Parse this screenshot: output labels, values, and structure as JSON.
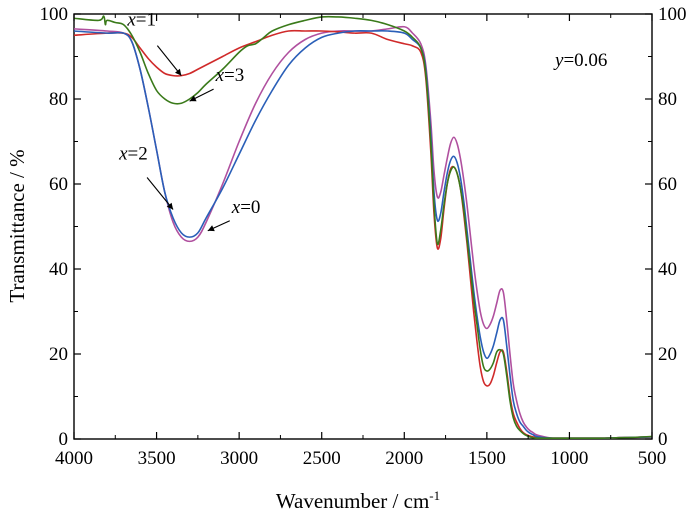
{
  "chart_data": {
    "type": "line",
    "title": "",
    "xlabel_main": "Wavenumber / cm",
    "xlabel_sup": "-1",
    "ylabel": "Transmittance / %",
    "xlim": [
      4000,
      500
    ],
    "x_reversed": true,
    "ylim": [
      0,
      100
    ],
    "x_ticks": [
      4000,
      3500,
      3000,
      2500,
      2000,
      1500,
      1000,
      500
    ],
    "x_tick_labels": [
      "4000",
      "3500",
      "3000",
      "2500",
      "2000",
      "1500",
      "1000",
      "500"
    ],
    "y_ticks": [
      0,
      20,
      40,
      60,
      80,
      100
    ],
    "y_tick_labels": [
      "0",
      "20",
      "40",
      "60",
      "80",
      "100"
    ],
    "right_y_axis_labels": true,
    "grid": false,
    "legend": "none",
    "series": [
      {
        "name": "x=0",
        "color": "#b0509f",
        "x": [
          4000,
          3800,
          3700,
          3650,
          3600,
          3550,
          3500,
          3450,
          3400,
          3350,
          3300,
          3250,
          3200,
          3100,
          3000,
          2900,
          2800,
          2700,
          2600,
          2500,
          2400,
          2300,
          2200,
          2100,
          2000,
          1950,
          1900,
          1870,
          1840,
          1820,
          1800,
          1780,
          1760,
          1740,
          1720,
          1700,
          1680,
          1660,
          1640,
          1620,
          1600,
          1580,
          1560,
          1540,
          1520,
          1500,
          1480,
          1460,
          1440,
          1420,
          1400,
          1380,
          1360,
          1340,
          1320,
          1300,
          1280,
          1260,
          1240,
          1220,
          1200,
          1150,
          1100,
          1050,
          1000,
          900,
          800,
          700,
          600,
          500
        ],
        "y": [
          96.5,
          96.0,
          95.5,
          93.5,
          87,
          78,
          68,
          58,
          51,
          47.5,
          46.5,
          47.5,
          51,
          60,
          70,
          79,
          86,
          91,
          94,
          95.5,
          96,
          96,
          96,
          96.5,
          97,
          95.5,
          93,
          88,
          75,
          63,
          57,
          58,
          62,
          66,
          69.5,
          71,
          69.5,
          66,
          61,
          55,
          48,
          41,
          35,
          30,
          27,
          26,
          27,
          29,
          32,
          35,
          34.5,
          28,
          20,
          13,
          9,
          6,
          4,
          2.8,
          2,
          1.5,
          1.0,
          0.5,
          0.2,
          0.2,
          0.2,
          0.2,
          0.2,
          0.3,
          0.4,
          0.5
        ]
      },
      {
        "name": "x=1",
        "color": "#d02a2a",
        "x": [
          4000,
          3800,
          3700,
          3650,
          3600,
          3550,
          3500,
          3450,
          3400,
          3350,
          3300,
          3250,
          3200,
          3100,
          3000,
          2900,
          2800,
          2700,
          2600,
          2500,
          2400,
          2300,
          2200,
          2100,
          2000,
          1950,
          1900,
          1870,
          1840,
          1820,
          1800,
          1780,
          1760,
          1740,
          1720,
          1700,
          1680,
          1660,
          1640,
          1620,
          1600,
          1580,
          1560,
          1540,
          1520,
          1500,
          1480,
          1460,
          1440,
          1420,
          1400,
          1380,
          1360,
          1340,
          1320,
          1300,
          1280,
          1260,
          1240,
          1220,
          1200,
          1150,
          1100,
          1050,
          1000,
          900,
          800,
          700,
          600,
          500
        ],
        "y": [
          95,
          95.5,
          95.5,
          94.5,
          92,
          89.5,
          87.5,
          86,
          85.5,
          85.5,
          86,
          87,
          88,
          90,
          92,
          93.5,
          95,
          96,
          96,
          96,
          95.8,
          95.5,
          95.5,
          94,
          93,
          92.5,
          91,
          85,
          68,
          53,
          45,
          47,
          54,
          60,
          63.5,
          64,
          62.5,
          59,
          53,
          46,
          38,
          30,
          23,
          17,
          13.5,
          12.5,
          13,
          15,
          18,
          20.5,
          20.5,
          16,
          10,
          6,
          4,
          2.5,
          1.5,
          1,
          0.7,
          0.5,
          0.3,
          0.2,
          0.2,
          0.2,
          0.2,
          0.2,
          0.2,
          0.3,
          0.4,
          0.5
        ]
      },
      {
        "name": "x=2",
        "color": "#2a5fb8",
        "x": [
          4000,
          3800,
          3700,
          3650,
          3600,
          3550,
          3500,
          3450,
          3400,
          3350,
          3300,
          3250,
          3200,
          3100,
          3000,
          2900,
          2800,
          2700,
          2600,
          2500,
          2400,
          2300,
          2200,
          2100,
          2000,
          1950,
          1900,
          1870,
          1840,
          1820,
          1800,
          1780,
          1760,
          1740,
          1720,
          1700,
          1680,
          1660,
          1640,
          1620,
          1600,
          1580,
          1560,
          1540,
          1520,
          1500,
          1480,
          1460,
          1440,
          1420,
          1400,
          1380,
          1360,
          1340,
          1320,
          1300,
          1280,
          1260,
          1240,
          1220,
          1200,
          1150,
          1100,
          1050,
          1000,
          900,
          800,
          700,
          600,
          500
        ],
        "y": [
          96,
          95.5,
          95.5,
          93.5,
          87,
          78,
          68,
          58,
          52,
          48.5,
          47.5,
          48.5,
          52,
          59,
          67,
          75,
          82,
          88,
          92,
          94.5,
          95.5,
          96,
          96,
          96,
          95.5,
          94,
          92,
          87,
          72,
          58,
          51.5,
          53,
          58,
          62.5,
          65.5,
          66.5,
          65,
          61.5,
          56,
          49,
          42,
          35,
          29,
          24,
          20.5,
          19,
          20,
          22,
          25,
          28,
          28,
          22,
          15,
          9,
          6,
          4,
          3,
          2,
          1.4,
          1,
          0.6,
          0.3,
          0.2,
          0.2,
          0.2,
          0.2,
          0.2,
          0.3,
          0.4,
          0.5
        ]
      },
      {
        "name": "x=3",
        "color": "#3a7a1a",
        "x": [
          4000,
          3850,
          3820,
          3810,
          3800,
          3750,
          3700,
          3650,
          3600,
          3550,
          3500,
          3450,
          3400,
          3350,
          3300,
          3250,
          3200,
          3100,
          3000,
          2950,
          2900,
          2850,
          2800,
          2700,
          2600,
          2500,
          2400,
          2300,
          2200,
          2100,
          2000,
          1950,
          1900,
          1870,
          1840,
          1820,
          1800,
          1780,
          1760,
          1740,
          1720,
          1700,
          1680,
          1660,
          1640,
          1620,
          1600,
          1580,
          1560,
          1540,
          1520,
          1500,
          1480,
          1460,
          1440,
          1420,
          1400,
          1380,
          1360,
          1340,
          1320,
          1300,
          1280,
          1260,
          1240,
          1220,
          1200,
          1150,
          1100,
          1050,
          1000,
          900,
          800,
          700,
          600,
          500
        ],
        "y": [
          99,
          98.5,
          99.5,
          97.5,
          98.5,
          98,
          97.5,
          95,
          91,
          86,
          82,
          80,
          79,
          79,
          80,
          81.5,
          83.5,
          87,
          91,
          92.5,
          93,
          94.5,
          96,
          97.5,
          98.5,
          99.3,
          99.3,
          99,
          98.5,
          97.5,
          96,
          94.5,
          92,
          86,
          70,
          55,
          46,
          49,
          55,
          60,
          63,
          64,
          62.5,
          59,
          54,
          47,
          40,
          33,
          27,
          21,
          17,
          16,
          16.5,
          18,
          20.5,
          21,
          20,
          15,
          9,
          5,
          3,
          2,
          1.3,
          0.8,
          0.5,
          0.3,
          0.2,
          0.2,
          0.2,
          0.2,
          0.2,
          0.2,
          0.2,
          0.3,
          0.4,
          0.6
        ]
      }
    ],
    "annotations": [
      {
        "var": "x",
        "text": "=1",
        "at": [
          3350,
          85.5
        ]
      },
      {
        "var": "x",
        "text": "=3",
        "at": [
          3300,
          79.5
        ]
      },
      {
        "var": "x",
        "text": "=2",
        "at": [
          3400,
          54
        ]
      },
      {
        "var": "x",
        "text": "=0",
        "at": [
          3190,
          49
        ]
      }
    ],
    "note": {
      "var": "y",
      "text": "=0.06"
    }
  }
}
